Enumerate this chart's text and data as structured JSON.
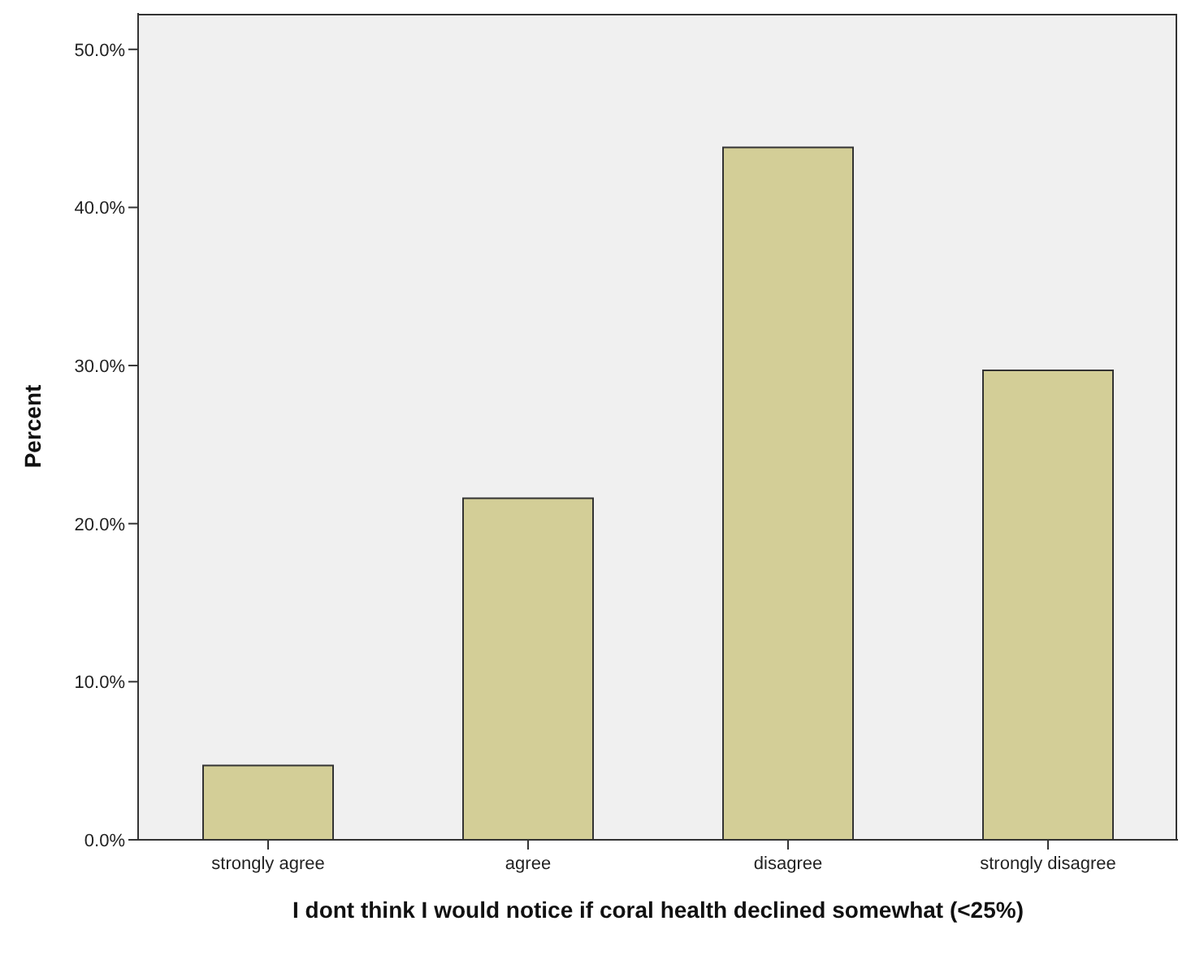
{
  "chart_data": {
    "type": "bar",
    "xlabel": "I dont think I would notice if coral health declined somewhat (<25%)",
    "ylabel": "Percent",
    "categories": [
      "strongly agree",
      "agree",
      "disagree",
      "strongly disagree"
    ],
    "values": [
      4.7,
      21.6,
      43.8,
      29.7
    ],
    "color": "#d3ce97",
    "ylim": [
      0,
      52.3
    ],
    "yticks": [
      {
        "value": 0,
        "label": "0.0%"
      },
      {
        "value": 10,
        "label": "10.0%"
      },
      {
        "value": 20,
        "label": "20.0%"
      },
      {
        "value": 30,
        "label": "30.0%"
      },
      {
        "value": 40,
        "label": "40.0%"
      },
      {
        "value": 50,
        "label": "50.0%"
      }
    ],
    "legend": false
  }
}
